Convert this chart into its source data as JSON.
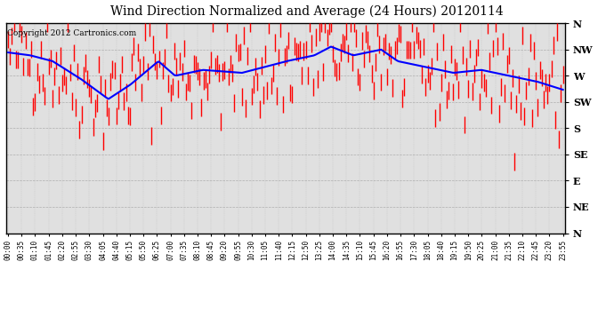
{
  "title": "Wind Direction Normalized and Average (24 Hours) 20120114",
  "copyright_text": "Copyright 2012 Cartronics.com",
  "y_labels": [
    "N",
    "NW",
    "W",
    "SW",
    "S",
    "SE",
    "E",
    "NE",
    "N"
  ],
  "y_values": [
    360,
    315,
    270,
    225,
    180,
    135,
    90,
    45,
    0
  ],
  "ylim": [
    0,
    360
  ],
  "bg_color": "#ffffff",
  "plot_bg_color": "#e0e0e0",
  "grid_color": "#aaaaaa",
  "bar_color": "#ff0000",
  "avg_color": "#0000ff",
  "title_fontsize": 10,
  "copyright_fontsize": 6.5,
  "avg_waypoints_t": [
    0,
    0.04,
    0.08,
    0.13,
    0.18,
    0.22,
    0.27,
    0.3,
    0.35,
    0.42,
    0.46,
    0.5,
    0.55,
    0.58,
    0.62,
    0.67,
    0.7,
    0.75,
    0.8,
    0.85,
    0.9,
    0.95,
    1.0
  ],
  "avg_waypoints_v": [
    310,
    305,
    295,
    265,
    230,
    255,
    295,
    270,
    280,
    275,
    285,
    295,
    305,
    320,
    305,
    315,
    295,
    285,
    275,
    280,
    270,
    260,
    245
  ],
  "noise_scale": 45,
  "n_points": 288,
  "tick_step": 7,
  "minutes_per_point": 5
}
